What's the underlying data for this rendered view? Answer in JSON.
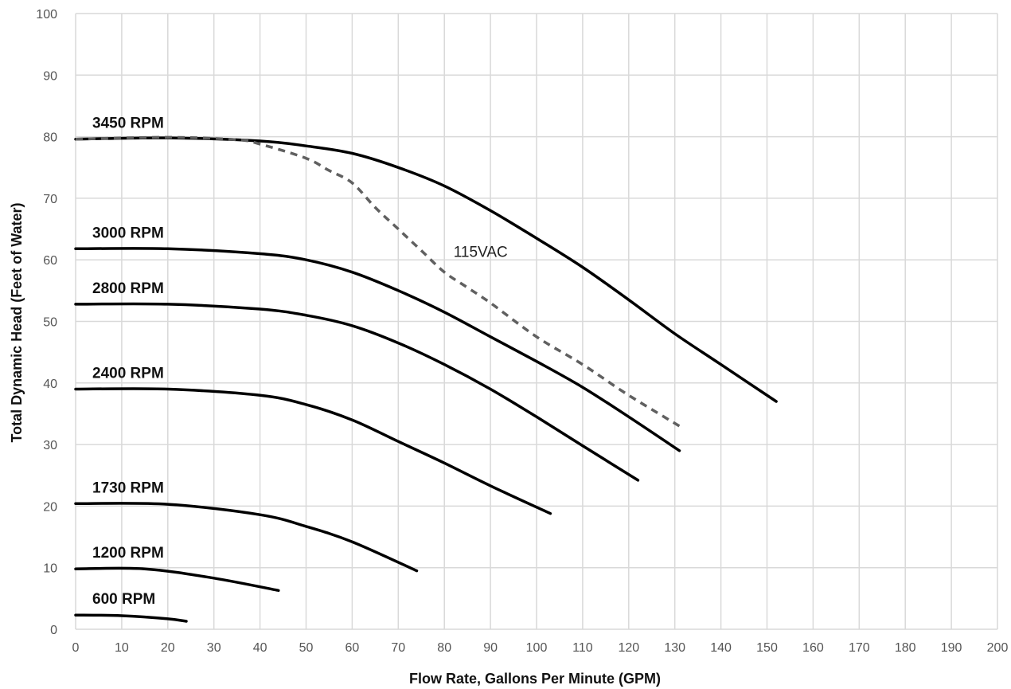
{
  "chart_data": {
    "type": "line",
    "title": "",
    "xlabel": "Flow Rate, Gallons Per Minute (GPM)",
    "ylabel": "Total Dynamic Head (Feet of Water)",
    "xlim": [
      0,
      200
    ],
    "ylim": [
      0,
      100
    ],
    "xticks": [
      "0",
      "10",
      "20",
      "30",
      "40",
      "50",
      "60",
      "70",
      "80",
      "90",
      "100",
      "110",
      "120",
      "130",
      "140",
      "150",
      "160",
      "170",
      "180",
      "190",
      "200"
    ],
    "yticks": [
      "0",
      "10",
      "20",
      "30",
      "40",
      "50",
      "60",
      "70",
      "80",
      "90",
      "100"
    ],
    "grid": true,
    "line_color": "#000000",
    "dashed_color": "#606060",
    "series": [
      {
        "name": "3450 RPM",
        "style": "solid",
        "x": [
          0,
          20,
          40,
          50,
          60,
          70,
          80,
          90,
          100,
          110,
          120,
          130,
          140,
          152
        ],
        "y": [
          79.6,
          79.8,
          79.3,
          78.5,
          77.3,
          75.0,
          72.0,
          68.0,
          63.5,
          58.8,
          53.5,
          48.0,
          43.0,
          37.0
        ]
      },
      {
        "name": "3000 RPM",
        "style": "solid",
        "x": [
          0,
          20,
          40,
          50,
          60,
          70,
          80,
          90,
          100,
          110,
          120,
          131
        ],
        "y": [
          61.8,
          61.8,
          61.0,
          60.0,
          58.0,
          55.0,
          51.5,
          47.5,
          43.5,
          39.3,
          34.5,
          29.0
        ]
      },
      {
        "name": "2800 RPM",
        "style": "solid",
        "x": [
          0,
          20,
          40,
          50,
          60,
          70,
          80,
          90,
          100,
          110,
          122
        ],
        "y": [
          52.8,
          52.8,
          52.0,
          51.0,
          49.3,
          46.5,
          43.0,
          39.0,
          34.5,
          29.8,
          24.2
        ]
      },
      {
        "name": "2400 RPM",
        "style": "solid",
        "x": [
          0,
          20,
          40,
          50,
          60,
          70,
          80,
          90,
          103
        ],
        "y": [
          39.0,
          39.0,
          38.0,
          36.5,
          34.0,
          30.5,
          27.0,
          23.3,
          18.8
        ]
      },
      {
        "name": "1730 RPM",
        "style": "solid",
        "x": [
          0,
          20,
          40,
          50,
          60,
          74
        ],
        "y": [
          20.4,
          20.3,
          18.6,
          16.7,
          14.2,
          9.5
        ]
      },
      {
        "name": "1200 RPM",
        "style": "solid",
        "x": [
          0,
          15,
          30,
          44
        ],
        "y": [
          9.8,
          9.8,
          8.3,
          6.3
        ]
      },
      {
        "name": "600 RPM",
        "style": "solid",
        "x": [
          0,
          10,
          20,
          24
        ],
        "y": [
          2.3,
          2.2,
          1.7,
          1.3
        ]
      },
      {
        "name": "115VAC",
        "style": "dashed",
        "x": [
          0,
          20,
          35,
          40,
          50,
          55,
          60,
          65,
          70,
          75,
          80,
          85,
          90,
          100,
          110,
          120,
          131
        ],
        "y": [
          79.6,
          79.9,
          79.5,
          78.8,
          76.5,
          74.5,
          72.5,
          68.5,
          65.0,
          61.5,
          58.0,
          55.5,
          53.0,
          47.5,
          43.0,
          38.0,
          33.0
        ]
      }
    ],
    "labels": [
      "3450 RPM",
      "3000 RPM",
      "2800 RPM",
      "2400 RPM",
      "1730 RPM",
      "1200 RPM",
      "600 RPM"
    ],
    "annotations": [
      {
        "text": "115VAC",
        "x": 82,
        "y": 60.5
      }
    ]
  }
}
